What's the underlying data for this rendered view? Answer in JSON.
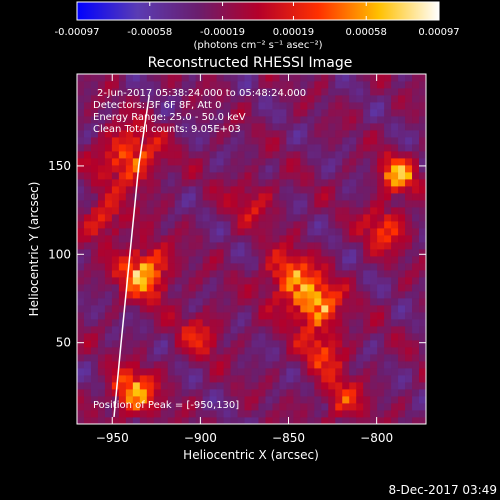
{
  "chart_data": {
    "type": "heatmap",
    "title": "Reconstructed RHESSI Image",
    "xlabel": "Heliocentric X (arcsec)",
    "ylabel": "Heliocentric Y (arcsec)",
    "xlim": [
      -970,
      -772
    ],
    "ylim": [
      4,
      202
    ],
    "x_ticks": [
      -950,
      -900,
      -850,
      -800
    ],
    "y_ticks": [
      50,
      100,
      150
    ],
    "colorbar": {
      "range": [
        -0.00097,
        0.00097
      ],
      "tick_values": [
        -0.00097,
        -0.00058,
        -0.00019,
        0.00019,
        0.00058,
        0.00097
      ],
      "tick_labels": [
        "-0.00097",
        "-0.00058",
        "-0.00019",
        "0.00019",
        "0.00058",
        "0.00097"
      ],
      "label": "(photons cm⁻² s⁻¹ asec⁻²)",
      "colors": [
        "#0000ff",
        "#5a3cb4",
        "#6a1e6e",
        "#b4002a",
        "#ff3000",
        "#ffc000",
        "#ffffff"
      ]
    },
    "annotations": {
      "time_range": "2-Jun-2017 05:38:24.000 to 05:48:24.000",
      "detectors": "Detectors: 3F 6F 8F, Att 0",
      "energy": "Energy Range: 25.0 - 50.0 keV",
      "clean": "Clean    Total counts: 9.05E+03",
      "peak": "Position of Peak = [-950,130]"
    },
    "limb_line": {
      "x": [
        -949,
        -945,
        -940,
        -935,
        -929
      ],
      "y": [
        8,
        50,
        100,
        150,
        190
      ]
    },
    "hot_regions": [
      {
        "x": -932,
        "y": 90,
        "intensity": 1.0,
        "sigma": 10
      },
      {
        "x": -938,
        "y": 22,
        "intensity": 0.9,
        "sigma": 9
      },
      {
        "x": -940,
        "y": 155,
        "intensity": 0.75,
        "sigma": 12
      },
      {
        "x": -955,
        "y": 120,
        "intensity": 0.6,
        "sigma": 8
      },
      {
        "x": -835,
        "y": 72,
        "intensity": 0.95,
        "sigma": 10
      },
      {
        "x": -850,
        "y": 88,
        "intensity": 0.7,
        "sigma": 10
      },
      {
        "x": -830,
        "y": 45,
        "intensity": 0.55,
        "sigma": 9
      },
      {
        "x": -788,
        "y": 145,
        "intensity": 0.95,
        "sigma": 7
      },
      {
        "x": -795,
        "y": 115,
        "intensity": 0.6,
        "sigma": 9
      },
      {
        "x": -820,
        "y": 18,
        "intensity": 0.5,
        "sigma": 9
      },
      {
        "x": -870,
        "y": 130,
        "intensity": 0.35,
        "sigma": 10
      },
      {
        "x": -900,
        "y": 55,
        "intensity": 0.45,
        "sigma": 9
      }
    ]
  },
  "footer": {
    "timestamp": "8-Dec-2017 03:49"
  }
}
